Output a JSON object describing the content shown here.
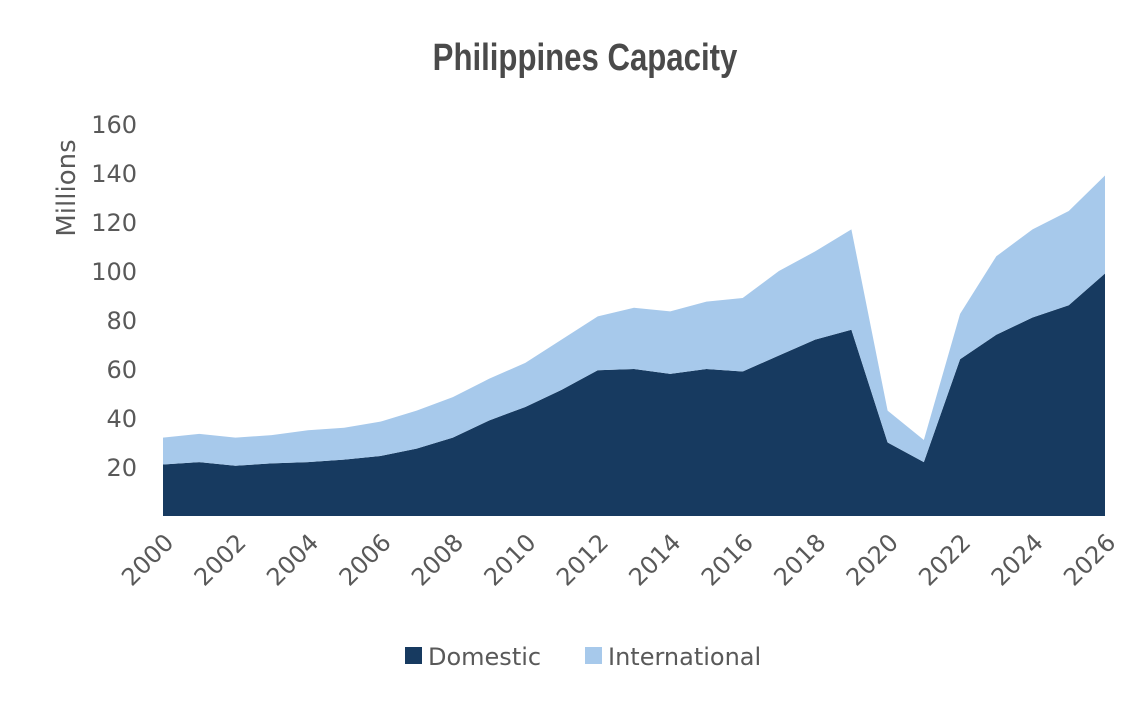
{
  "chart_data": {
    "type": "area",
    "stacked": true,
    "title": "Philippines Capacity",
    "xlabel": "",
    "ylabel": "Millions",
    "ylim": [
      0,
      160
    ],
    "yticks": [
      20,
      40,
      60,
      80,
      100,
      120,
      140,
      160
    ],
    "x": [
      2000,
      2001,
      2002,
      2003,
      2004,
      2005,
      2006,
      2007,
      2008,
      2009,
      2010,
      2011,
      2012,
      2013,
      2014,
      2015,
      2016,
      2017,
      2018,
      2019,
      2020,
      2021,
      2022,
      2023,
      2024,
      2025,
      2026
    ],
    "xtick_labels": [
      "2000",
      "2002",
      "2004",
      "2006",
      "2008",
      "2010",
      "2012",
      "2014",
      "2016",
      "2018",
      "2020",
      "2022",
      "2024",
      "2026"
    ],
    "grid": false,
    "legend_position": "bottom",
    "series": [
      {
        "name": "Domestic",
        "color": "#173a60",
        "values": [
          21,
          22,
          20.5,
          21.5,
          22,
          23,
          24.5,
          27.5,
          32,
          39,
          44.5,
          51.5,
          59.5,
          60,
          58,
          60,
          59,
          65.5,
          72,
          76,
          30,
          22,
          64,
          74,
          81,
          86,
          99
        ]
      },
      {
        "name": "International",
        "color": "#a7c9eb",
        "values": [
          11,
          11.5,
          11.5,
          11.5,
          13,
          13,
          14,
          15.5,
          16.5,
          17,
          18,
          20.5,
          22,
          25,
          25.5,
          27.5,
          30,
          34.5,
          36,
          41,
          13,
          9,
          18.5,
          32,
          36,
          38.5,
          40
        ]
      }
    ]
  }
}
